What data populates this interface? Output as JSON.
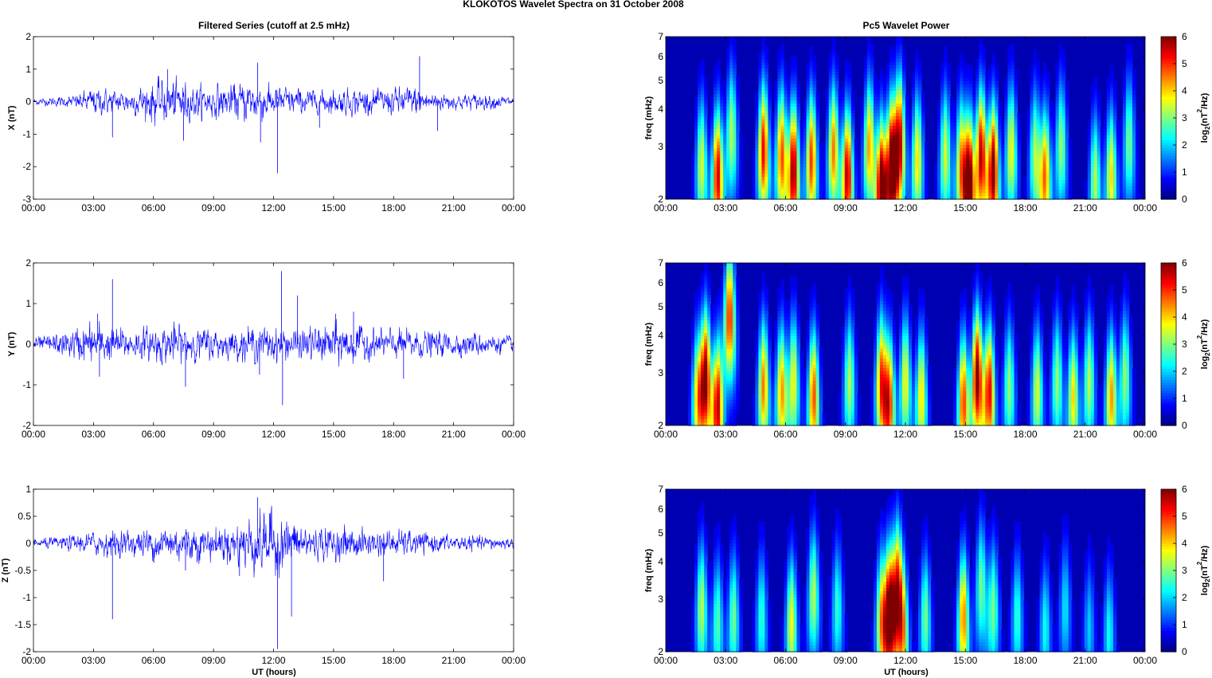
{
  "figure": {
    "suptitle": "KLOKOTOS Wavelet Spectra on 31 October   2008",
    "left_title": "Filtered Series (cutoff at 2.5 mHz)",
    "right_title": "Pc5 Wavelet Power",
    "xlabel": "UT (hours)",
    "time_ticks": [
      "00:00",
      "03:00",
      "06:00",
      "09:00",
      "12:00",
      "15:00",
      "18:00",
      "21:00",
      "00:00"
    ],
    "freq_label": "freq (mHz)",
    "freq_ticks": [
      "2",
      "3",
      "4",
      "5",
      "6",
      "7"
    ],
    "cbar_label_base": "log",
    "cbar_label_sub": "2",
    "cbar_label_mid": "(nT",
    "cbar_label_sup": "2",
    "cbar_label_end": "/Hz)",
    "cbar_ticks": [
      "0",
      "1",
      "2",
      "3",
      "4",
      "5",
      "6"
    ],
    "line_color": "#0000ff"
  },
  "chart_data": [
    {
      "type": "line",
      "title": "Filtered Series (cutoff at 2.5 mHz)",
      "xlabel": "",
      "ylabel": "X (nT)",
      "xlim": [
        0,
        24
      ],
      "ylim": [
        -3,
        2
      ],
      "yticks": [
        "2",
        "1",
        "0",
        "-1",
        "-2",
        "-3"
      ],
      "x_unit": "hours UT",
      "envelope": {
        "x": [
          0,
          2,
          3,
          4,
          5,
          6,
          7,
          8,
          9,
          10,
          11,
          12,
          13,
          14,
          15,
          16,
          17,
          18,
          19,
          20,
          21,
          22,
          23,
          24
        ],
        "amp": [
          0.08,
          0.15,
          0.35,
          0.3,
          0.3,
          0.55,
          0.6,
          0.45,
          0.4,
          0.45,
          0.55,
          0.4,
          0.35,
          0.3,
          0.3,
          0.35,
          0.3,
          0.35,
          0.4,
          0.25,
          0.2,
          0.2,
          0.18,
          0.12
        ]
      },
      "spikes": [
        {
          "x": 3.95,
          "y": -1.1
        },
        {
          "x": 7.5,
          "y": -1.2
        },
        {
          "x": 11.2,
          "y": 1.2
        },
        {
          "x": 11.35,
          "y": -1.25
        },
        {
          "x": 12.2,
          "y": -2.2
        },
        {
          "x": 19.3,
          "y": 1.4
        },
        {
          "x": 20.2,
          "y": -0.9
        },
        {
          "x": 6.7,
          "y": 1.0
        },
        {
          "x": 14.3,
          "y": -0.8
        }
      ]
    },
    {
      "type": "heatmap",
      "title": "Pc5 Wavelet Power",
      "ylabel": "freq (mHz)",
      "xlim": [
        0,
        24
      ],
      "ylim": [
        2,
        7
      ],
      "yscale": "log",
      "clim": [
        0,
        6
      ],
      "colormap": "jet",
      "colorbar_label": "log2(nT^2/Hz)",
      "blobs": [
        {
          "t": 1.8,
          "a": 3.2,
          "f": 2.6
        },
        {
          "t": 2.6,
          "a": 5.2,
          "f": 2.4
        },
        {
          "t": 3.3,
          "a": 3.0,
          "f": 3.3
        },
        {
          "t": 4.9,
          "a": 5.0,
          "f": 2.9
        },
        {
          "t": 5.8,
          "a": 4.5,
          "f": 2.8
        },
        {
          "t": 6.4,
          "a": 5.6,
          "f": 2.5
        },
        {
          "t": 7.3,
          "a": 4.6,
          "f": 2.7
        },
        {
          "t": 8.4,
          "a": 4.2,
          "f": 2.9
        },
        {
          "t": 9.1,
          "a": 5.4,
          "f": 2.4
        },
        {
          "t": 10.2,
          "a": 4.0,
          "f": 3.0
        },
        {
          "t": 10.8,
          "a": 6.0,
          "f": 2.2
        },
        {
          "t": 11.3,
          "a": 5.8,
          "f": 2.6
        },
        {
          "t": 11.7,
          "a": 5.3,
          "f": 3.1
        },
        {
          "t": 12.6,
          "a": 3.6,
          "f": 2.7
        },
        {
          "t": 14.0,
          "a": 3.2,
          "f": 2.8
        },
        {
          "t": 14.8,
          "a": 4.0,
          "f": 2.6
        },
        {
          "t": 15.2,
          "a": 5.8,
          "f": 2.3
        },
        {
          "t": 15.8,
          "a": 5.4,
          "f": 2.8
        },
        {
          "t": 16.4,
          "a": 5.8,
          "f": 2.5
        },
        {
          "t": 17.3,
          "a": 3.4,
          "f": 2.9
        },
        {
          "t": 18.5,
          "a": 3.0,
          "f": 2.8
        },
        {
          "t": 19.0,
          "a": 4.2,
          "f": 2.4
        },
        {
          "t": 19.8,
          "a": 2.8,
          "f": 3.0
        },
        {
          "t": 21.5,
          "a": 3.0,
          "f": 2.3
        },
        {
          "t": 22.3,
          "a": 3.6,
          "f": 2.4
        },
        {
          "t": 23.2,
          "a": 2.6,
          "f": 3.1
        }
      ]
    },
    {
      "type": "line",
      "title": "",
      "xlabel": "",
      "ylabel": "Y (nT)",
      "xlim": [
        0,
        24
      ],
      "ylim": [
        -2,
        2
      ],
      "yticks": [
        "2",
        "1",
        "0",
        "-1",
        "-2"
      ],
      "x_unit": "hours UT",
      "envelope": {
        "x": [
          0,
          2,
          3,
          4,
          5,
          6,
          7,
          8,
          9,
          10,
          11,
          12,
          13,
          14,
          15,
          16,
          17,
          18,
          19,
          20,
          21,
          22,
          23,
          24
        ],
        "amp": [
          0.12,
          0.3,
          0.45,
          0.35,
          0.3,
          0.35,
          0.4,
          0.35,
          0.3,
          0.3,
          0.35,
          0.35,
          0.3,
          0.35,
          0.45,
          0.4,
          0.3,
          0.3,
          0.3,
          0.25,
          0.25,
          0.25,
          0.2,
          0.15
        ]
      },
      "spikes": [
        {
          "x": 3.2,
          "y": 0.75
        },
        {
          "x": 3.95,
          "y": 1.6
        },
        {
          "x": 7.6,
          "y": -1.05
        },
        {
          "x": 11.3,
          "y": -0.75
        },
        {
          "x": 12.4,
          "y": 1.8
        },
        {
          "x": 12.45,
          "y": -1.5
        },
        {
          "x": 13.2,
          "y": 1.2
        },
        {
          "x": 18.5,
          "y": -0.85
        },
        {
          "x": 16.0,
          "y": 0.8
        },
        {
          "x": 3.3,
          "y": -0.8
        },
        {
          "x": 15.1,
          "y": 0.75
        }
      ]
    },
    {
      "type": "heatmap",
      "title": "",
      "ylabel": "freq (mHz)",
      "xlim": [
        0,
        24
      ],
      "ylim": [
        2,
        7
      ],
      "yscale": "log",
      "clim": [
        0,
        6
      ],
      "colormap": "jet",
      "colorbar_label": "log2(nT^2/Hz)",
      "blobs": [
        {
          "t": 1.6,
          "a": 3.4,
          "f": 2.5
        },
        {
          "t": 2.0,
          "a": 5.6,
          "f": 2.9
        },
        {
          "t": 2.6,
          "a": 5.2,
          "f": 2.3
        },
        {
          "t": 3.2,
          "a": 4.8,
          "f": 4.6
        },
        {
          "t": 4.9,
          "a": 4.2,
          "f": 2.7
        },
        {
          "t": 5.8,
          "a": 4.0,
          "f": 2.6
        },
        {
          "t": 6.4,
          "a": 3.4,
          "f": 2.8
        },
        {
          "t": 7.4,
          "a": 4.5,
          "f": 2.5
        },
        {
          "t": 9.2,
          "a": 3.0,
          "f": 2.8
        },
        {
          "t": 10.8,
          "a": 4.6,
          "f": 2.8
        },
        {
          "t": 11.2,
          "a": 4.4,
          "f": 2.4
        },
        {
          "t": 12.0,
          "a": 3.4,
          "f": 2.8
        },
        {
          "t": 12.8,
          "a": 3.6,
          "f": 2.5
        },
        {
          "t": 14.9,
          "a": 4.6,
          "f": 2.4
        },
        {
          "t": 15.6,
          "a": 5.8,
          "f": 2.9
        },
        {
          "t": 16.2,
          "a": 5.0,
          "f": 2.6
        },
        {
          "t": 17.2,
          "a": 2.8,
          "f": 2.7
        },
        {
          "t": 18.6,
          "a": 3.2,
          "f": 2.6
        },
        {
          "t": 19.6,
          "a": 2.8,
          "f": 2.8
        },
        {
          "t": 20.4,
          "a": 3.6,
          "f": 2.5
        },
        {
          "t": 21.2,
          "a": 3.0,
          "f": 2.8
        },
        {
          "t": 22.3,
          "a": 4.0,
          "f": 2.5
        },
        {
          "t": 23.0,
          "a": 2.8,
          "f": 2.9
        }
      ]
    },
    {
      "type": "line",
      "title": "",
      "xlabel": "UT (hours)",
      "ylabel": "Z (nT)",
      "xlim": [
        0,
        24
      ],
      "ylim": [
        -2,
        1
      ],
      "yticks": [
        "1",
        "0.5",
        "0",
        "-0.5",
        "-1",
        "-1.5",
        "-2"
      ],
      "x_unit": "hours UT",
      "envelope": {
        "x": [
          0,
          2,
          3,
          4,
          5,
          6,
          7,
          8,
          9,
          10,
          11,
          12,
          13,
          14,
          15,
          16,
          17,
          18,
          19,
          20,
          21,
          22,
          23,
          24
        ],
        "amp": [
          0.06,
          0.12,
          0.18,
          0.2,
          0.2,
          0.25,
          0.3,
          0.28,
          0.25,
          0.3,
          0.45,
          0.5,
          0.35,
          0.25,
          0.25,
          0.25,
          0.2,
          0.2,
          0.18,
          0.15,
          0.12,
          0.12,
          0.1,
          0.08
        ]
      },
      "spikes": [
        {
          "x": 3.95,
          "y": -1.4
        },
        {
          "x": 11.2,
          "y": 0.85
        },
        {
          "x": 12.2,
          "y": -1.95
        },
        {
          "x": 12.9,
          "y": -1.35
        },
        {
          "x": 17.5,
          "y": -0.7
        },
        {
          "x": 7.6,
          "y": -0.5
        },
        {
          "x": 11.8,
          "y": 0.55
        },
        {
          "x": 10.3,
          "y": -0.6
        }
      ]
    },
    {
      "type": "heatmap",
      "title": "",
      "ylabel": "freq (mHz)",
      "xlim": [
        0,
        24
      ],
      "ylim": [
        2,
        7
      ],
      "yscale": "log",
      "clim": [
        0,
        6
      ],
      "colormap": "jet",
      "colorbar_label": "log2(nT^2/Hz)",
      "blobs": [
        {
          "t": 1.8,
          "a": 3.0,
          "f": 2.8
        },
        {
          "t": 2.6,
          "a": 2.4,
          "f": 2.5
        },
        {
          "t": 3.4,
          "a": 2.6,
          "f": 2.6
        },
        {
          "t": 4.8,
          "a": 2.2,
          "f": 2.6
        },
        {
          "t": 6.3,
          "a": 3.4,
          "f": 2.5
        },
        {
          "t": 7.4,
          "a": 3.0,
          "f": 3.1
        },
        {
          "t": 8.6,
          "a": 2.2,
          "f": 2.8
        },
        {
          "t": 10.8,
          "a": 3.6,
          "f": 2.6
        },
        {
          "t": 11.2,
          "a": 5.6,
          "f": 2.7
        },
        {
          "t": 11.6,
          "a": 5.0,
          "f": 3.2
        },
        {
          "t": 11.9,
          "a": 3.0,
          "f": 2.3
        },
        {
          "t": 13.0,
          "a": 2.6,
          "f": 2.6
        },
        {
          "t": 14.9,
          "a": 4.2,
          "f": 2.6
        },
        {
          "t": 15.8,
          "a": 2.6,
          "f": 3.3
        },
        {
          "t": 16.4,
          "a": 2.6,
          "f": 2.8
        },
        {
          "t": 17.6,
          "a": 2.2,
          "f": 2.6
        },
        {
          "t": 19.0,
          "a": 2.0,
          "f": 2.4
        },
        {
          "t": 20.0,
          "a": 1.8,
          "f": 2.8
        },
        {
          "t": 21.2,
          "a": 1.6,
          "f": 2.4
        },
        {
          "t": 22.2,
          "a": 2.0,
          "f": 2.3
        }
      ]
    }
  ]
}
